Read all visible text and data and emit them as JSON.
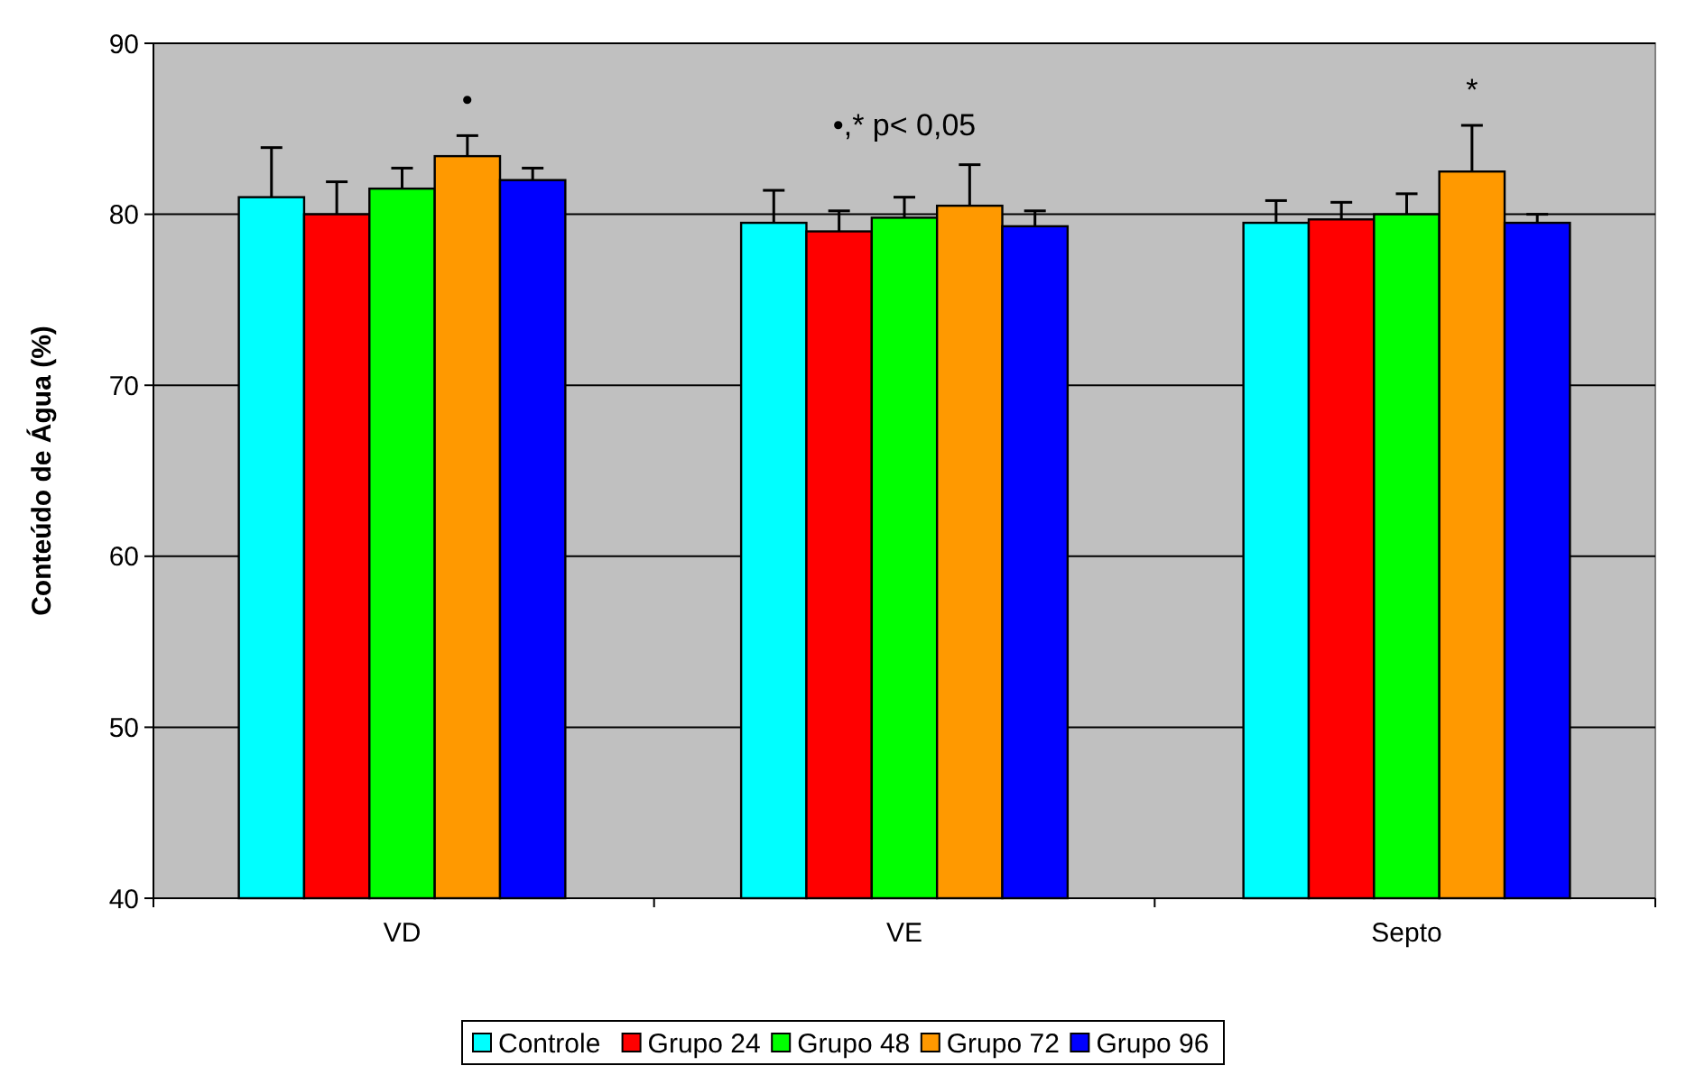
{
  "chart_data": {
    "type": "bar",
    "ylabel": "Conteúdo de Água (%)",
    "categories": [
      "VD",
      "VE",
      "Septo"
    ],
    "series": [
      {
        "name": "Controle",
        "color": "#00ffff",
        "values": [
          81.0,
          79.5,
          79.5
        ],
        "errors": [
          2.9,
          1.9,
          1.3
        ]
      },
      {
        "name": "Grupo 24",
        "color": "#ff0000",
        "values": [
          80.0,
          79.0,
          79.7
        ],
        "errors": [
          1.9,
          1.2,
          1.0
        ]
      },
      {
        "name": "Grupo 48",
        "color": "#00ff00",
        "values": [
          81.5,
          79.8,
          80.0
        ],
        "errors": [
          1.2,
          1.2,
          1.2
        ]
      },
      {
        "name": "Grupo 72",
        "color": "#ff9900",
        "values": [
          83.4,
          80.5,
          82.5
        ],
        "errors": [
          1.2,
          2.4,
          2.7
        ]
      },
      {
        "name": "Grupo 96",
        "color": "#0000ff",
        "values": [
          82.0,
          79.3,
          79.5
        ],
        "errors": [
          0.7,
          0.9,
          0.5
        ]
      }
    ],
    "ylim": [
      40,
      90
    ],
    "yticks": [
      40,
      50,
      60,
      70,
      80,
      90
    ],
    "grid": "y",
    "legend": "bottom",
    "annotations": [
      "•",
      "•,* p< 0,05",
      "*"
    ]
  }
}
